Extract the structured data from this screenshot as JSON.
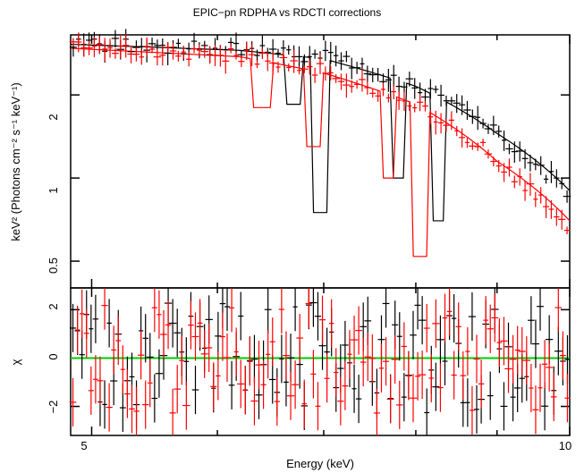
{
  "chart_data": {
    "type": "spectral-fit",
    "title": "EPIC−pn RDPHA vs RDCTI corrections",
    "xlabel": "Energy (keV)",
    "x_scale": "log",
    "xlim": [
      4.85,
      10
    ],
    "x_ticks": [
      "5",
      "10"
    ],
    "colors": {
      "black_series": "#000000",
      "red_series": "#ff0000",
      "zero_line": "#00cc00"
    },
    "panels": [
      {
        "name": "spectrum",
        "ylabel": "keV² (Photons cm⁻² s⁻¹ keV⁻¹)",
        "y_scale": "log",
        "ylim": [
          0.4,
          3.3
        ],
        "y_ticks": [
          "0.5",
          "1",
          "2"
        ],
        "series": [
          {
            "color": "#000000",
            "model": [
              [
                4.85,
                3.05
              ],
              [
                6.2,
                2.9
              ],
              [
                7.0,
                2.7
              ],
              [
                8.0,
                2.15
              ],
              [
                9.0,
                1.45
              ],
              [
                10.0,
                0.9
              ]
            ],
            "absorption_lines": [
              [
                6.7,
                1.85
              ],
              [
                6.97,
                0.75
              ],
              [
                7.8,
                1.0
              ],
              [
                8.25,
                0.7
              ]
            ],
            "data_trend": [
              [
                4.85,
                3.05
              ],
              [
                6.2,
                2.95
              ],
              [
                7.0,
                2.75
              ],
              [
                8.0,
                2.15
              ],
              [
                9.0,
                1.45
              ],
              [
                10.0,
                0.85
              ]
            ]
          },
          {
            "color": "#ff0000",
            "model": [
              [
                4.85,
                2.95
              ],
              [
                6.2,
                2.75
              ],
              [
                7.0,
                2.4
              ],
              [
                8.0,
                1.85
              ],
              [
                9.0,
                1.15
              ],
              [
                10.0,
                0.7
              ]
            ],
            "absorption_lines": [
              [
                6.4,
                1.8
              ],
              [
                6.9,
                1.3
              ],
              [
                7.7,
                1.0
              ],
              [
                8.05,
                0.52
              ]
            ],
            "data_trend": [
              [
                4.85,
                3.0
              ],
              [
                6.2,
                2.8
              ],
              [
                7.0,
                2.45
              ],
              [
                8.0,
                1.85
              ],
              [
                9.0,
                1.15
              ],
              [
                10.0,
                0.65
              ]
            ]
          }
        ]
      },
      {
        "name": "residuals",
        "ylabel": "χ",
        "ylim": [
          -3.2,
          2.9
        ],
        "y_ticks": [
          "−2",
          "0",
          "2"
        ],
        "zero_line": 0
      }
    ]
  }
}
